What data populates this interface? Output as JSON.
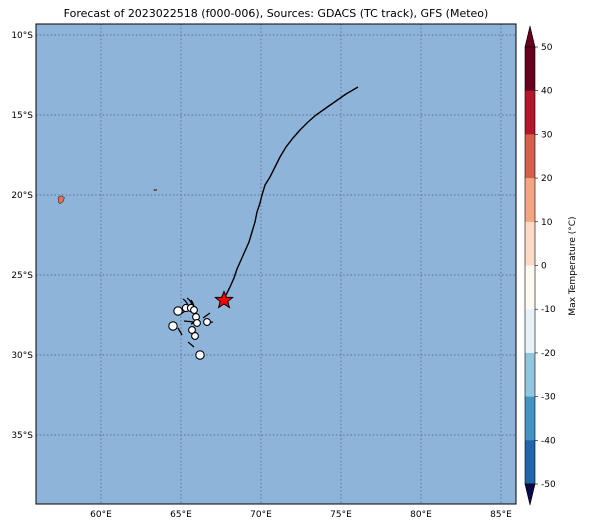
{
  "title": "Forecast of 2023022518 (f000-006), Sources: GDACS (TC track), GFS (Meteo)",
  "map": {
    "ocean_color": "#8fb4d9",
    "land_color": "#e8704e",
    "lat_labels": [
      "10°S",
      "15°S",
      "20°S",
      "25°S",
      "30°S",
      "35°S"
    ],
    "lon_labels": [
      "60°E",
      "65°E",
      "70°E",
      "75°E",
      "80°E",
      "85°E"
    ]
  },
  "track": {
    "current_position_marker": "red-star",
    "current_position_color": "#ff0000"
  },
  "colorbar": {
    "label": "Max Temperature (°C)",
    "ticks": [
      "50",
      "40",
      "30",
      "20",
      "10",
      "0",
      "-10",
      "-20",
      "-30",
      "-40",
      "-50"
    ],
    "colors": [
      "#67001f",
      "#b2182b",
      "#d6604d",
      "#f4a582",
      "#fddbc7",
      "#fefaf2",
      "#e6f2f8",
      "#92c5de",
      "#4393c3",
      "#2166ac",
      "#2b2e8a"
    ],
    "top_arrow_color": "#67001f",
    "bottom_arrow_color": "#0a0a4a"
  }
}
